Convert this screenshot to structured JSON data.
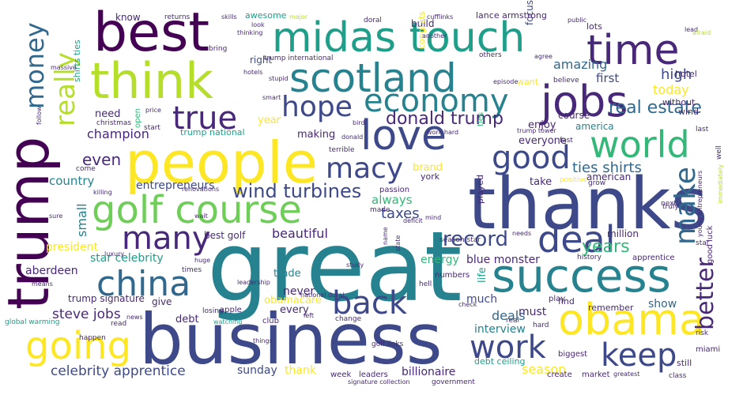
{
  "colors": {
    "background": "#ffffff",
    "yellow": "#fde725",
    "lime": "#b5de2b",
    "lightgreen": "#6ece58",
    "green": "#35b779",
    "teal": "#1f9e89",
    "bluegreen": "#26828e",
    "blue": "#31688e",
    "indigo": "#3e4989",
    "purple": "#482878",
    "darkpurple": "#440154"
  },
  "words": {
    "great": "great",
    "business": "business",
    "thanks": "thanks",
    "trump": "trump",
    "people": "people",
    "best": "best",
    "midas_touch": "midas touch",
    "think": "think",
    "success": "success",
    "scotland": "scotland",
    "obama": "obama",
    "jobs": "jobs",
    "golf_course": "golf course",
    "love": "love",
    "time": "time",
    "going": "going",
    "world": "world",
    "economy": "economy",
    "china": "china",
    "deal": "deal",
    "keep": "keep",
    "work": "work",
    "good": "good",
    "back": "back",
    "many": "many",
    "hope": "hope",
    "macy": "macy",
    "true": "true",
    "make": "make",
    "really": "really",
    "money": "money",
    "better": "better",
    "wind_turbines": "wind turbines",
    "donald_trump": "donald trump",
    "record": "record",
    "real_estate": "real estate",
    "years": "years",
    "ties_shirts": "ties shirts",
    "celebrity_apprentice": "celebrity apprentice",
    "steve_jobs": "steve jobs",
    "amazing": "amazing",
    "even": "even",
    "taxes": "taxes",
    "beautiful": "beautiful",
    "today": "today",
    "high": "high",
    "first": "first",
    "champion": "champion",
    "country": "country",
    "entrepreneurs": "entrepreneurs",
    "small": "small",
    "always": "always",
    "president": "president",
    "star_celebrity": "star celebrity",
    "aberdeen": "aberdeen",
    "blue_monster": "blue monster",
    "energy": "energy",
    "deals": "deals",
    "never": "never",
    "much": "much",
    "must": "must",
    "show": "show",
    "season": "season",
    "sunday": "sunday",
    "thank": "thank",
    "billionaire": "billionaire",
    "interview": "interview",
    "debt": "debt",
    "trade": "trade",
    "obamacare": "obamacare",
    "every": "every",
    "need": "need",
    "year": "year",
    "making": "making",
    "enjoy": "enjoy",
    "everyone": "everyone",
    "america": "america",
    "take": "take",
    "american": "american",
    "brand": "brand",
    "focus": "focus",
    "trump_signature": "trump signature",
    "give": "give",
    "life": "life",
    "million": "million",
    "best_golf": "best golf",
    "course": "course",
    "build": "build",
    "right": "right",
    "know": "know",
    "awesome": "awesome",
    "congrats": "congrats",
    "lance_armstrong": "lance armstrong",
    "trump_national": "trump national",
    "trump_international": "trump international",
    "shirts_ties": "shirts ties",
    "open": "open",
    "ties": "ties",
    "played": "played",
    "york": "york",
    "want": "want",
    "lots": "lots",
    "hotel": "hotel",
    "without": "without",
    "wind": "wind",
    "debt_ceiling": "debt ceiling",
    "find": "find",
    "play": "play",
    "remember": "remember",
    "still": "still",
    "miami": "miami",
    "good_luck": "good luck",
    "apprentice": "apprentice",
    "history": "history",
    "create": "create",
    "market": "market",
    "week": "week",
    "leaders": "leaders",
    "apple": "apple",
    "losing": "losing",
    "club": "club",
    "change": "change",
    "hard": "hard",
    "real": "real",
    "biggest": "biggest",
    "numbers": "numbers",
    "hell": "hell",
    "mind": "mind",
    "needs": "needs",
    "times": "times",
    "means": "means",
    "leadership": "leadership",
    "read": "read",
    "news": "news",
    "global_warming": "global warming",
    "watching": "watching",
    "happen": "happen",
    "things": "things",
    "golf_links": "golf links",
    "signature_collection": "signature collection",
    "government": "government",
    "greatest": "greatest",
    "class": "class",
    "risk": "risk",
    "check": "check",
    "left": "left",
    "national_doral": "national doral",
    "study": "study",
    "state": "state",
    "name": "name",
    "season_star": "season star",
    "deficit": "deficit",
    "made": "made",
    "passion": "passion",
    "renovations": "renovations",
    "killing": "killing",
    "sure": "sure",
    "wait": "wait",
    "come": "come",
    "positive": "positive",
    "grow": "grow",
    "truly": "truly",
    "young_entrepreneurs": "young entrepreneurs",
    "immediately": "immediately",
    "next": "next",
    "star": "star",
    "well": "well",
    "last": "last",
    "trump_tower": "trump tower",
    "fast": "fast",
    "terrible": "terrible",
    "donald": "donald",
    "work_hard": "work hard",
    "bird": "bird",
    "christmas": "christmas",
    "start": "start",
    "price": "price",
    "follow": "follow",
    "hotels": "hotels",
    "stupid": "stupid",
    "smart": "smart",
    "bring": "bring",
    "massive": "massive",
    "skills": "skills",
    "look": "look",
    "thinking": "thinking",
    "returns": "returns",
    "major": "major",
    "doral": "doral",
    "cufflinks": "cufflinks",
    "another": "another",
    "others": "others",
    "agree": "agree",
    "public": "public",
    "lead": "lead",
    "afraid": "afraid",
    "episode": "episode",
    "believe": "believe",
    "luxury": "luxury",
    "huge": "huge"
  }
}
